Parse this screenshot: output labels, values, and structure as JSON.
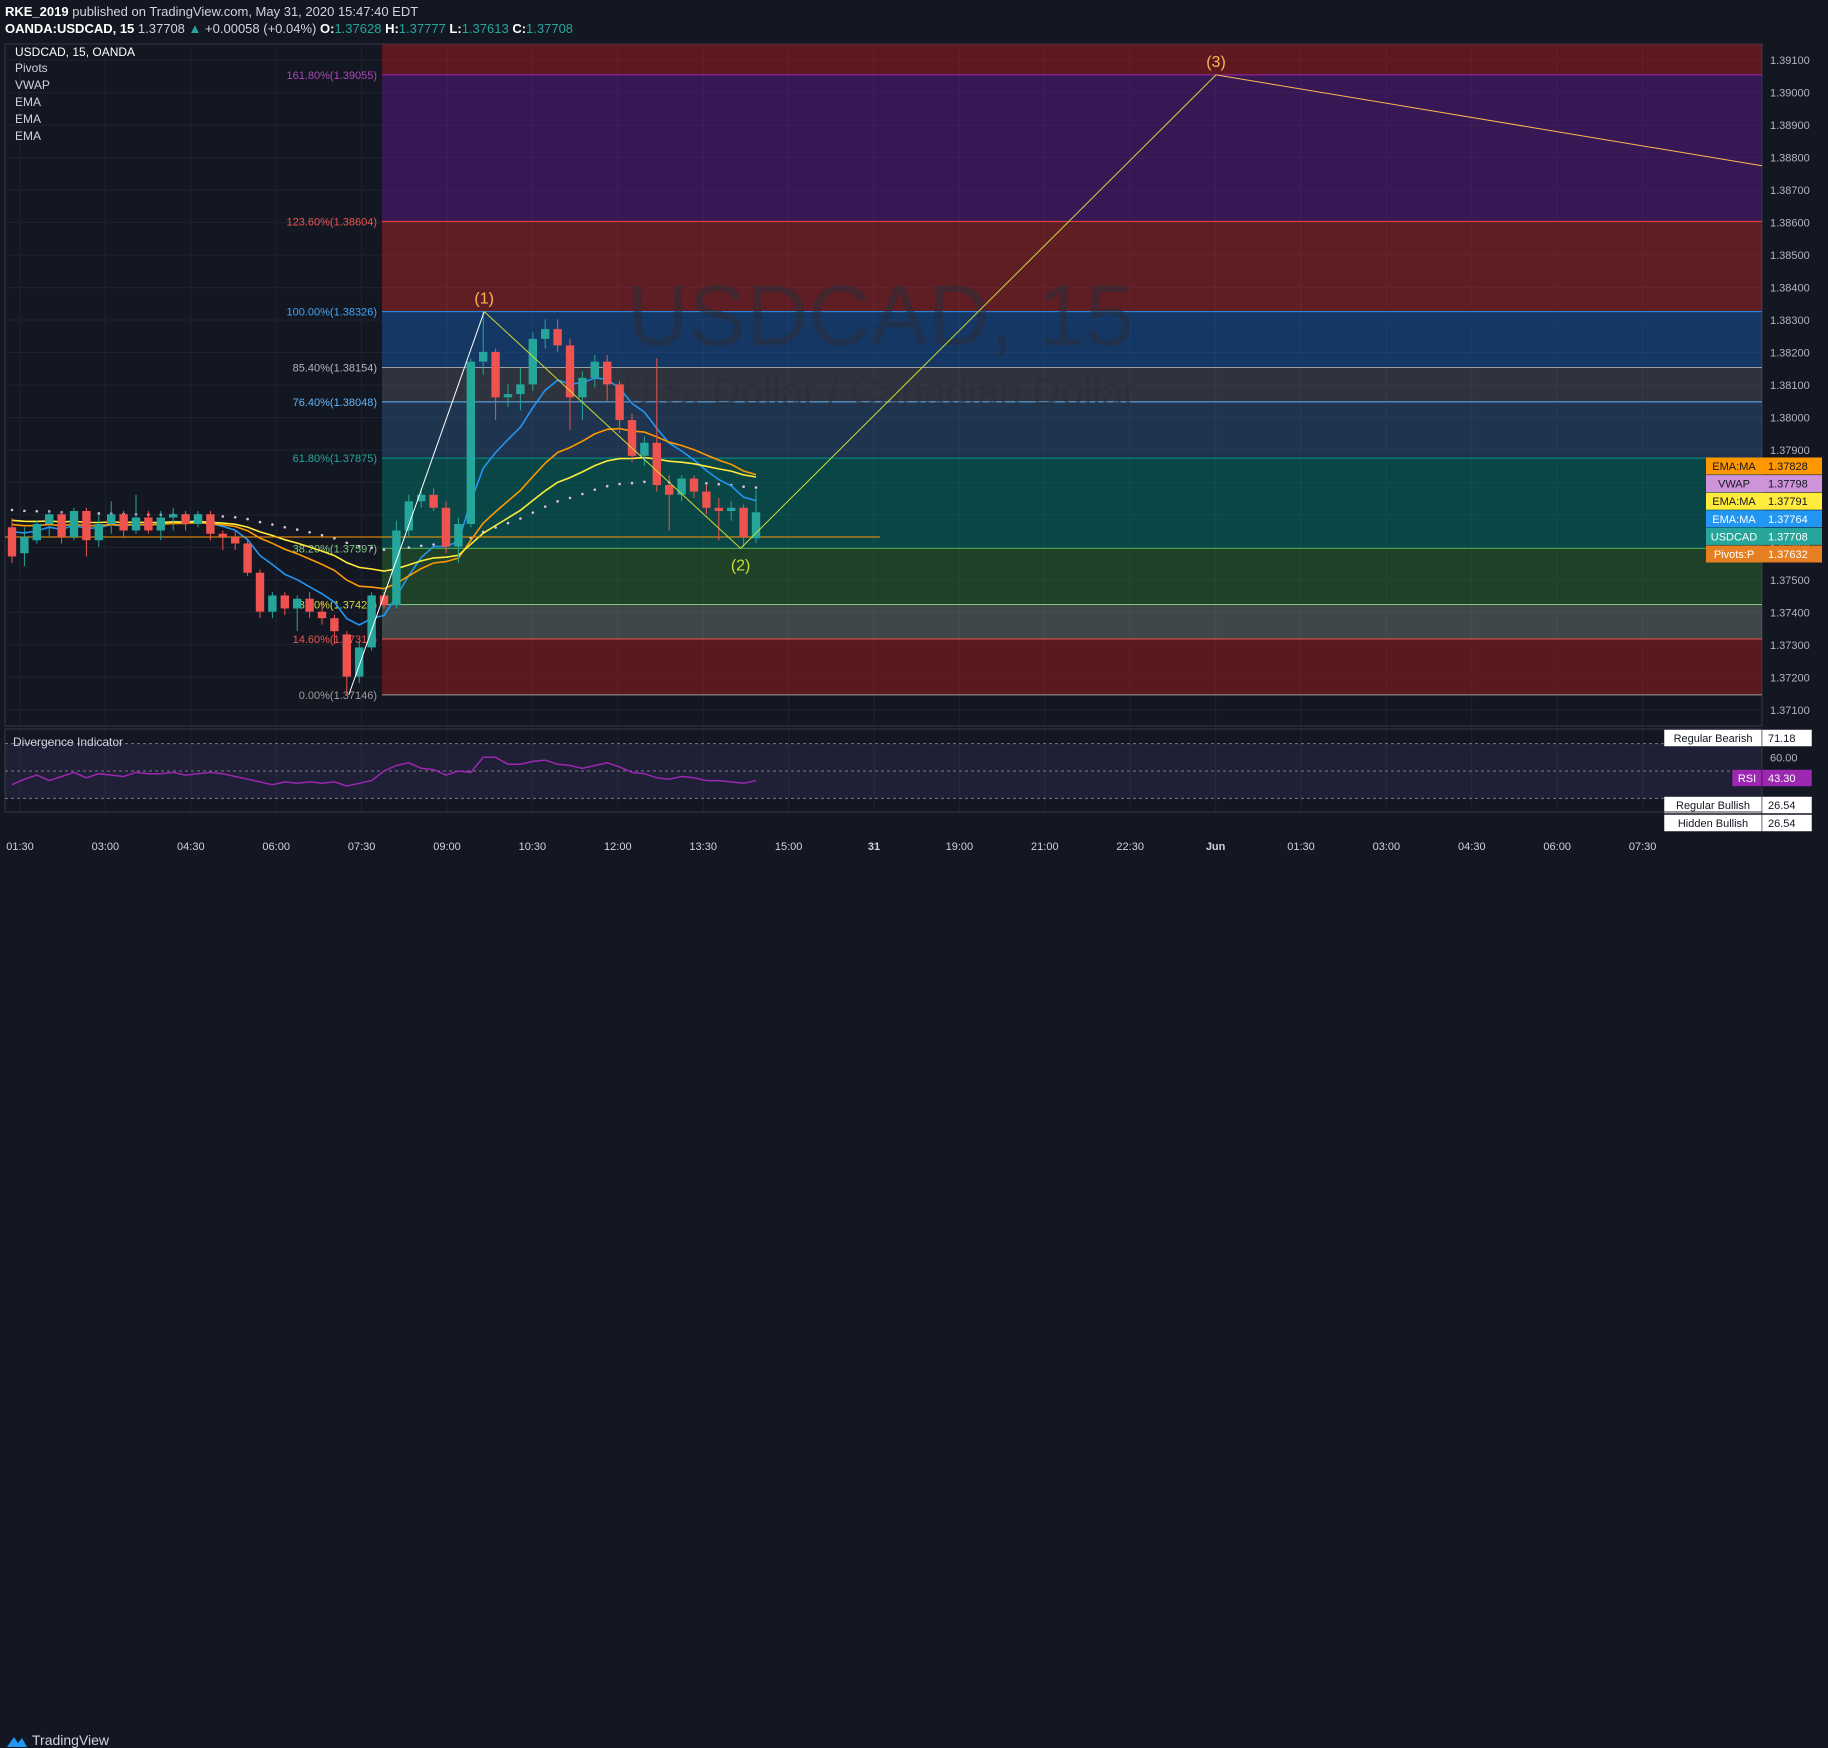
{
  "header": {
    "author": "RKE_2019",
    "published_text": "published on TradingView.com, May 31, 2020 15:47:40 EDT",
    "symbol": "OANDA:USDCAD, 15",
    "last": "1.37708",
    "change": "+0.00058 (+0.04%)",
    "o_label": "O:",
    "o": "1.37628",
    "h_label": "H:",
    "h": "1.37777",
    "l_label": "L:",
    "l": "1.37613",
    "c_label": "C:",
    "c": "1.37708"
  },
  "legend": {
    "title": "USDCAD, 15, OANDA",
    "items": [
      "Pivots",
      "VWAP",
      "EMA",
      "EMA",
      "EMA"
    ]
  },
  "watermark": {
    "symbol": "USDCAD, 15",
    "name": "U.S. Dollar / Canadian Dollar"
  },
  "colors": {
    "bg": "#131722",
    "up": "#26a69a",
    "down": "#ef5350",
    "ema_fast": "#2196f3",
    "ema_mid": "#ff9800",
    "ema_slow": "#ffeb3b",
    "vwap": "#e1bee7",
    "rsi": "#9c27b0",
    "wave": "#ffb74d"
  },
  "chart_data": {
    "type": "candlestick",
    "ylim": [
      1.3705,
      1.3915
    ],
    "y_ticks": [
      "1.37100",
      "1.37200",
      "1.37300",
      "1.37400",
      "1.37500",
      "1.37600",
      "1.37700",
      "1.37800",
      "1.37900",
      "1.38000",
      "1.38100",
      "1.38200",
      "1.38300",
      "1.38400",
      "1.38500",
      "1.38600",
      "1.38700",
      "1.38800",
      "1.38900",
      "1.39000",
      "1.39100"
    ],
    "x_labels": [
      "01:30",
      "03:00",
      "04:30",
      "06:00",
      "07:30",
      "09:00",
      "10:30",
      "12:00",
      "13:30",
      "15:00",
      "31",
      "19:00",
      "21:00",
      "22:30",
      "Jun",
      "01:30",
      "03:00",
      "04:30",
      "06:00",
      "07:30"
    ],
    "candles": [
      {
        "o": 1.37662,
        "h": 1.3769,
        "l": 1.37552,
        "c": 1.37572
      },
      {
        "o": 1.37582,
        "h": 1.37662,
        "l": 1.37542,
        "c": 1.37632
      },
      {
        "o": 1.37622,
        "h": 1.37682,
        "l": 1.37612,
        "c": 1.37672
      },
      {
        "o": 1.37672,
        "h": 1.37712,
        "l": 1.3763,
        "c": 1.37702
      },
      {
        "o": 1.37702,
        "h": 1.37712,
        "l": 1.37612,
        "c": 1.37632
      },
      {
        "o": 1.37632,
        "h": 1.37722,
        "l": 1.37622,
        "c": 1.37712
      },
      {
        "o": 1.37712,
        "h": 1.37722,
        "l": 1.37572,
        "c": 1.37622
      },
      {
        "o": 1.37622,
        "h": 1.37702,
        "l": 1.37602,
        "c": 1.37672
      },
      {
        "o": 1.37672,
        "h": 1.37742,
        "l": 1.37642,
        "c": 1.37702
      },
      {
        "o": 1.37702,
        "h": 1.37712,
        "l": 1.37632,
        "c": 1.37652
      },
      {
        "o": 1.37652,
        "h": 1.37762,
        "l": 1.37642,
        "c": 1.37692
      },
      {
        "o": 1.37692,
        "h": 1.37712,
        "l": 1.37642,
        "c": 1.37652
      },
      {
        "o": 1.37652,
        "h": 1.37712,
        "l": 1.37622,
        "c": 1.37692
      },
      {
        "o": 1.37692,
        "h": 1.37722,
        "l": 1.37652,
        "c": 1.37702
      },
      {
        "o": 1.37702,
        "h": 1.37712,
        "l": 1.37652,
        "c": 1.37672
      },
      {
        "o": 1.37672,
        "h": 1.37712,
        "l": 1.37662,
        "c": 1.37702
      },
      {
        "o": 1.37702,
        "h": 1.37712,
        "l": 1.37622,
        "c": 1.37642
      },
      {
        "o": 1.37642,
        "h": 1.37652,
        "l": 1.37592,
        "c": 1.37632
      },
      {
        "o": 1.37632,
        "h": 1.37652,
        "l": 1.37592,
        "c": 1.37612
      },
      {
        "o": 1.37612,
        "h": 1.37622,
        "l": 1.37512,
        "c": 1.37522
      },
      {
        "o": 1.37522,
        "h": 1.37532,
        "l": 1.37382,
        "c": 1.37402
      },
      {
        "o": 1.37402,
        "h": 1.37462,
        "l": 1.37382,
        "c": 1.37452
      },
      {
        "o": 1.37452,
        "h": 1.37462,
        "l": 1.37392,
        "c": 1.37412
      },
      {
        "o": 1.37412,
        "h": 1.37452,
        "l": 1.37342,
        "c": 1.37442
      },
      {
        "o": 1.37442,
        "h": 1.37462,
        "l": 1.37382,
        "c": 1.37402
      },
      {
        "o": 1.37402,
        "h": 1.37432,
        "l": 1.37362,
        "c": 1.37382
      },
      {
        "o": 1.37382,
        "h": 1.37392,
        "l": 1.37302,
        "c": 1.37342
      },
      {
        "o": 1.37332,
        "h": 1.37342,
        "l": 1.37146,
        "c": 1.37202
      },
      {
        "o": 1.37202,
        "h": 1.37312,
        "l": 1.37182,
        "c": 1.37292
      },
      {
        "o": 1.37292,
        "h": 1.37462,
        "l": 1.37282,
        "c": 1.37452
      },
      {
        "o": 1.37452,
        "h": 1.37462,
        "l": 1.37412,
        "c": 1.37422
      },
      {
        "o": 1.37422,
        "h": 1.37682,
        "l": 1.37412,
        "c": 1.37652
      },
      {
        "o": 1.37652,
        "h": 1.37762,
        "l": 1.37632,
        "c": 1.37742
      },
      {
        "o": 1.37742,
        "h": 1.37782,
        "l": 1.37722,
        "c": 1.37762
      },
      {
        "o": 1.37762,
        "h": 1.37782,
        "l": 1.37712,
        "c": 1.37722
      },
      {
        "o": 1.37722,
        "h": 1.37742,
        "l": 1.37582,
        "c": 1.37602
      },
      {
        "o": 1.37602,
        "h": 1.37692,
        "l": 1.37552,
        "c": 1.37672
      },
      {
        "o": 1.37672,
        "h": 1.38182,
        "l": 1.37662,
        "c": 1.38172
      },
      {
        "o": 1.38172,
        "h": 1.38326,
        "l": 1.38132,
        "c": 1.38202
      },
      {
        "o": 1.38202,
        "h": 1.38212,
        "l": 1.37992,
        "c": 1.38062
      },
      {
        "o": 1.38062,
        "h": 1.38102,
        "l": 1.38032,
        "c": 1.38072
      },
      {
        "o": 1.38072,
        "h": 1.38152,
        "l": 1.38022,
        "c": 1.38102
      },
      {
        "o": 1.38102,
        "h": 1.38262,
        "l": 1.38082,
        "c": 1.38242
      },
      {
        "o": 1.38242,
        "h": 1.38302,
        "l": 1.38212,
        "c": 1.38272
      },
      {
        "o": 1.38272,
        "h": 1.38302,
        "l": 1.38202,
        "c": 1.38222
      },
      {
        "o": 1.38222,
        "h": 1.38242,
        "l": 1.37962,
        "c": 1.38062
      },
      {
        "o": 1.38062,
        "h": 1.38142,
        "l": 1.37992,
        "c": 1.38122
      },
      {
        "o": 1.38122,
        "h": 1.38192,
        "l": 1.38092,
        "c": 1.38172
      },
      {
        "o": 1.38172,
        "h": 1.38192,
        "l": 1.38052,
        "c": 1.38102
      },
      {
        "o": 1.38102,
        "h": 1.38112,
        "l": 1.37952,
        "c": 1.37992
      },
      {
        "o": 1.37992,
        "h": 1.38012,
        "l": 1.37862,
        "c": 1.37882
      },
      {
        "o": 1.37882,
        "h": 1.37942,
        "l": 1.37852,
        "c": 1.37922
      },
      {
        "o": 1.37922,
        "h": 1.38182,
        "l": 1.37772,
        "c": 1.37792
      },
      {
        "o": 1.37792,
        "h": 1.37822,
        "l": 1.37652,
        "c": 1.37762
      },
      {
        "o": 1.37762,
        "h": 1.37822,
        "l": 1.37742,
        "c": 1.37812
      },
      {
        "o": 1.37812,
        "h": 1.37822,
        "l": 1.37752,
        "c": 1.37772
      },
      {
        "o": 1.37772,
        "h": 1.37792,
        "l": 1.37702,
        "c": 1.37722
      },
      {
        "o": 1.37722,
        "h": 1.37752,
        "l": 1.37622,
        "c": 1.37712
      },
      {
        "o": 1.37712,
        "h": 1.37742,
        "l": 1.37682,
        "c": 1.37722
      },
      {
        "o": 1.37722,
        "h": 1.37732,
        "l": 1.37602,
        "c": 1.37632
      },
      {
        "o": 1.37628,
        "h": 1.37777,
        "l": 1.37613,
        "c": 1.37708
      }
    ],
    "fib_levels": [
      {
        "label": "0.00%(1.37146)",
        "price": 1.37146
      },
      {
        "label": "14.60%(1.37318)",
        "price": 1.37318
      },
      {
        "label": "23.60%(1.37424)",
        "price": 1.37424
      },
      {
        "label": "38.20%(1.37597)",
        "price": 1.37597
      },
      {
        "label": "61.80%(1.37875)",
        "price": 1.37875
      },
      {
        "label": "76.40%(1.38048)",
        "price": 1.38048
      },
      {
        "label": "85.40%(1.38154)",
        "price": 1.38154
      },
      {
        "label": "100.00%(1.38326)",
        "price": 1.38326
      },
      {
        "label": "123.60%(1.38604)",
        "price": 1.38604
      },
      {
        "label": "161.80%(1.39055)",
        "price": 1.39055
      }
    ],
    "waves": [
      {
        "label": "(1)",
        "price": 1.38326
      },
      {
        "label": "(2)",
        "price": 1.37597
      },
      {
        "label": "(3)",
        "price": 1.39055
      }
    ],
    "price_tags": [
      {
        "name": "EMA:MA",
        "value": "1.37828"
      },
      {
        "name": "VWAP",
        "value": "1.37798"
      },
      {
        "name": "EMA:MA",
        "value": "1.37791"
      },
      {
        "name": "EMA:MA",
        "value": "1.37764"
      },
      {
        "name": "USDCAD",
        "value": "1.37708"
      },
      {
        "name": "Pivots:P",
        "value": "1.37632"
      }
    ],
    "pivot_p": 1.37632,
    "rsi": {
      "title": "Divergence Indicator",
      "tick": "60.00",
      "values": [
        40,
        44,
        47,
        43,
        46,
        49,
        45,
        48,
        47,
        46,
        49,
        48,
        48,
        49,
        47,
        48,
        49,
        48,
        46,
        44,
        42,
        40,
        42,
        41,
        42,
        41,
        42,
        39,
        41,
        43,
        50,
        54,
        56,
        52,
        51,
        47,
        50,
        49,
        60,
        60,
        55,
        55,
        57,
        58,
        55,
        54,
        52,
        54,
        56,
        53,
        49,
        48,
        45,
        44,
        46,
        45,
        43,
        43,
        42,
        41,
        43
      ],
      "tags": [
        {
          "name": "Regular Bearish",
          "value": "71.18"
        },
        {
          "name": "RSI",
          "value": "43.30"
        },
        {
          "name": "Regular Bullish",
          "value": "26.54"
        },
        {
          "name": "Hidden Bullish",
          "value": "26.54"
        }
      ]
    }
  },
  "footer": {
    "brand": "TradingView"
  }
}
